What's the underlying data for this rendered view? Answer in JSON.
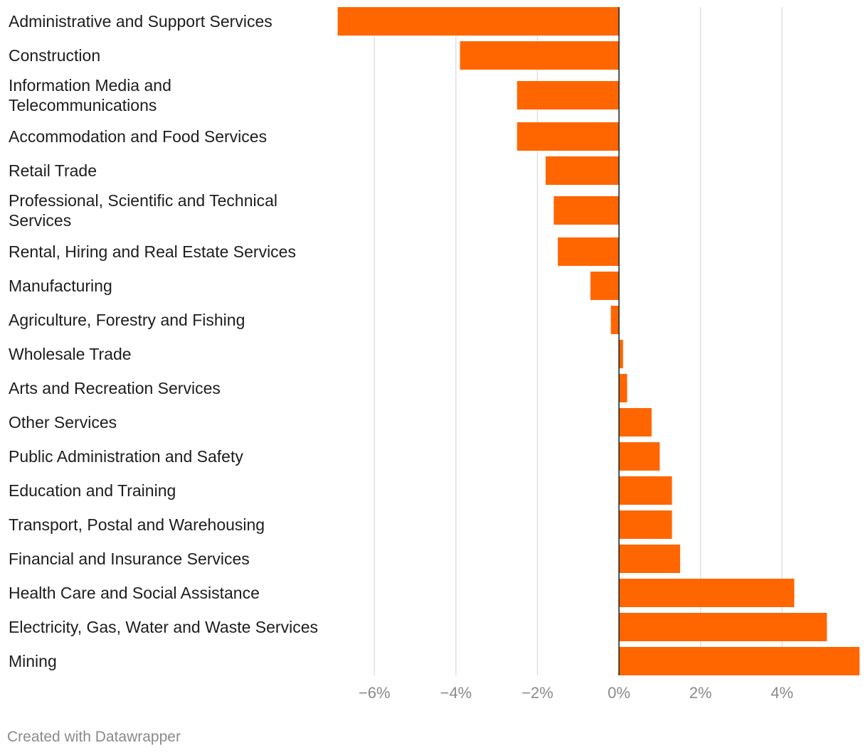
{
  "credit": "Created with Datawrapper",
  "colors": {
    "bar": "#ff6600",
    "grid": "#e0e0e0",
    "zero": "#1a1a1a",
    "tick": "#8a8a8a",
    "label": "#1d1d1d"
  },
  "chart_data": {
    "type": "bar",
    "orientation": "horizontal",
    "title": "",
    "xlabel": "",
    "ylabel": "",
    "xlim": [
      -6.9,
      5.9
    ],
    "grid": true,
    "ticks": [
      {
        "value": -6,
        "label": "−6%"
      },
      {
        "value": -4,
        "label": "−4%"
      },
      {
        "value": -2,
        "label": "−2%"
      },
      {
        "value": 0,
        "label": "0%"
      },
      {
        "value": 2,
        "label": "2%"
      },
      {
        "value": 4,
        "label": "4%"
      }
    ],
    "categories": [
      [
        "Administrative and Support Services"
      ],
      [
        "Construction"
      ],
      [
        "Information Media and",
        "Telecommunications"
      ],
      [
        "Accommodation and Food Services"
      ],
      [
        "Retail Trade"
      ],
      [
        "Professional, Scientific and Technical",
        "Services"
      ],
      [
        "Rental, Hiring and Real Estate Services"
      ],
      [
        "Manufacturing"
      ],
      [
        "Agriculture, Forestry and Fishing"
      ],
      [
        "Wholesale Trade"
      ],
      [
        "Arts and Recreation Services"
      ],
      [
        "Other Services"
      ],
      [
        "Public Administration and Safety"
      ],
      [
        "Education and Training"
      ],
      [
        "Transport, Postal and Warehousing"
      ],
      [
        "Financial and Insurance Services"
      ],
      [
        "Health Care and Social Assistance"
      ],
      [
        "Electricity, Gas, Water and Waste Services"
      ],
      [
        "Mining"
      ]
    ],
    "values": [
      -6.9,
      -3.9,
      -2.5,
      -2.5,
      -1.8,
      -1.6,
      -1.5,
      -0.7,
      -0.2,
      0.1,
      0.2,
      0.8,
      1.0,
      1.3,
      1.3,
      1.5,
      4.3,
      5.1,
      5.9
    ]
  }
}
